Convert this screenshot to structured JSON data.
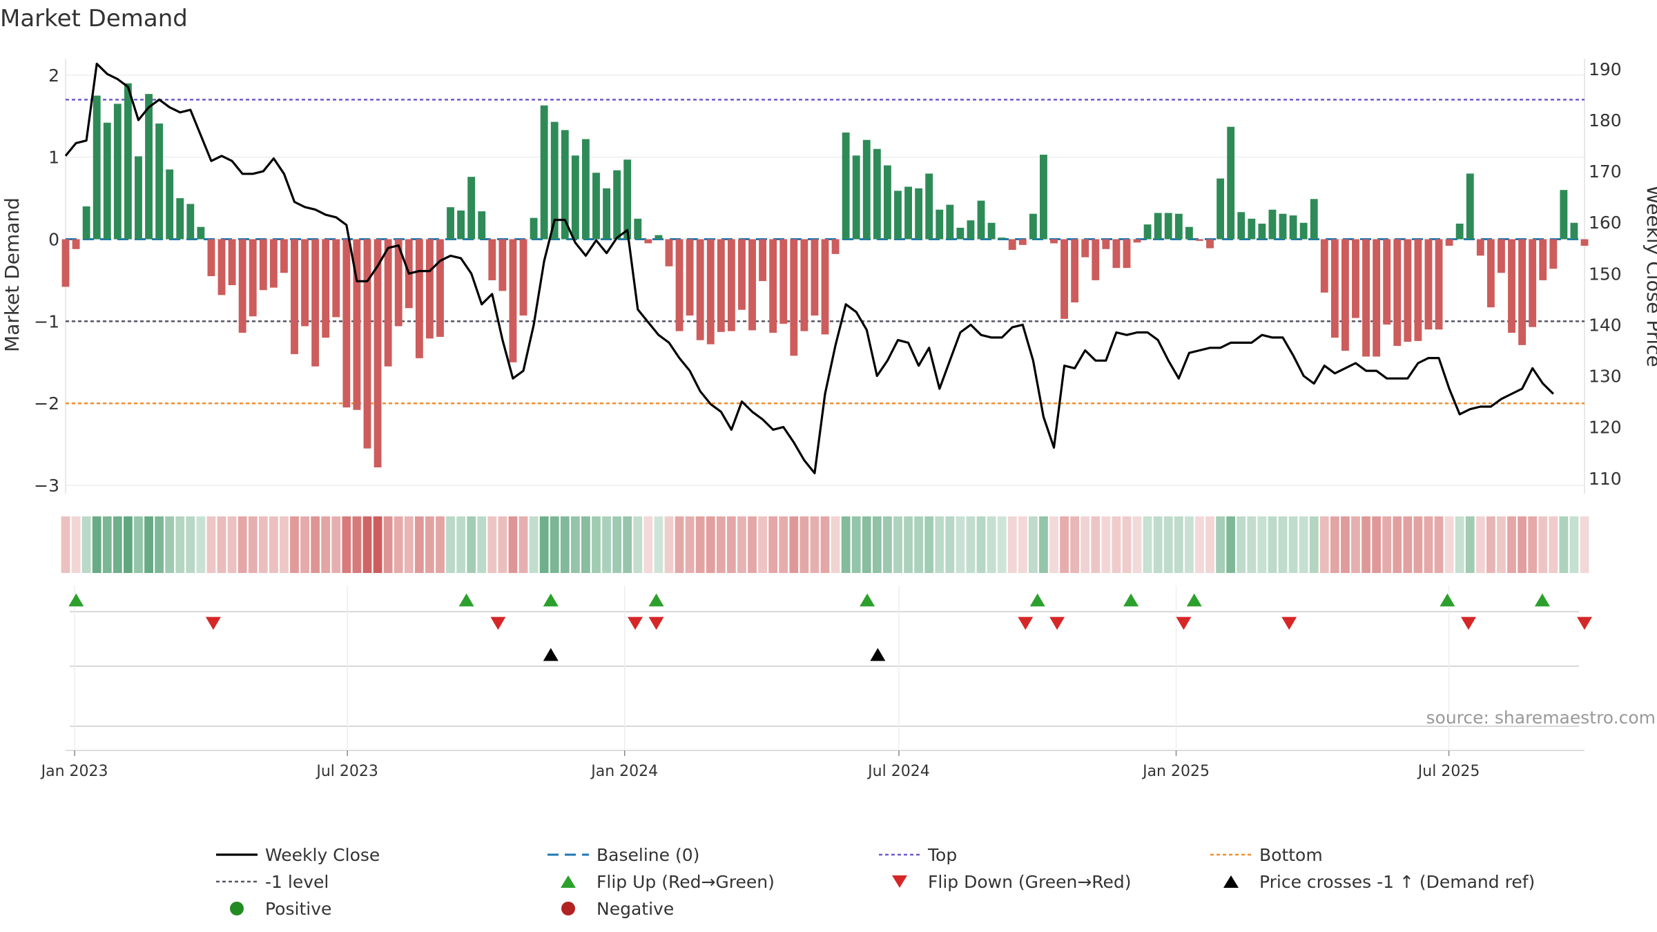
{
  "chart_data": {
    "type": "bar",
    "title": "Market Demand",
    "ylabel": "Market Demand",
    "y2label": "Weekly Close Price",
    "source": "source: sharemaestro.com",
    "ylim": [
      -3.1,
      2.2
    ],
    "y2lim": [
      107,
      192
    ],
    "yticks": [
      2,
      1,
      0,
      -1,
      -2,
      -3
    ],
    "ytick_labels": [
      "2",
      "1",
      "0",
      "−1",
      "−2",
      "−3"
    ],
    "y2ticks": [
      190,
      180,
      170,
      160,
      150,
      140,
      130,
      120,
      110
    ],
    "y2tick_labels": [
      "190",
      "180",
      "170",
      "160",
      "150",
      "140",
      "130",
      "120",
      "110"
    ],
    "x_start": "2022-12-26",
    "x_end": "2025-09-29",
    "weeks": 145,
    "xticks": [
      {
        "date": "2023-01-01",
        "label": "Jan 2023"
      },
      {
        "date": "2023-07-01",
        "label": "Jul 2023"
      },
      {
        "date": "2024-01-01",
        "label": "Jan 2024"
      },
      {
        "date": "2024-07-01",
        "label": "Jul 2024"
      },
      {
        "date": "2025-01-01",
        "label": "Jan 2025"
      },
      {
        "date": "2025-07-01",
        "label": "Jul 2025"
      }
    ],
    "reference_lines": {
      "baseline": 0,
      "top": 1.7,
      "minus_one": -1,
      "bottom": -2
    },
    "colors": {
      "positive": "#2e8b57",
      "negative": "#cd5c5c",
      "price": "#000000",
      "top": "#6a5acd",
      "bottom": "#f28e2b",
      "baseline": "#1f77b4",
      "minus_one": "#555566",
      "flip_up": "#2ca02c",
      "flip_down": "#d62728",
      "positive_dot": "#228b22",
      "negative_dot": "#b22222"
    },
    "demand": [
      -0.58,
      -0.12,
      0.4,
      1.75,
      1.42,
      1.65,
      1.9,
      1.01,
      1.77,
      1.41,
      0.85,
      0.5,
      0.43,
      0.15,
      -0.45,
      -0.68,
      -0.56,
      -1.14,
      -0.94,
      -0.62,
      -0.59,
      -0.41,
      -1.4,
      -1.06,
      -1.55,
      -1.2,
      -0.95,
      -2.05,
      -2.08,
      -2.55,
      -2.78,
      -1.55,
      -1.06,
      -0.84,
      -1.45,
      -1.21,
      -1.19,
      0.39,
      0.35,
      0.76,
      0.34,
      -0.5,
      -0.63,
      -1.5,
      -0.93,
      0.26,
      1.63,
      1.43,
      1.33,
      1.02,
      1.22,
      0.81,
      0.62,
      0.84,
      0.97,
      0.25,
      -0.05,
      0.05,
      -0.33,
      -1.12,
      -0.93,
      -1.23,
      -1.28,
      -1.13,
      -1.12,
      -0.86,
      -1.11,
      -0.51,
      -1.14,
      -1.03,
      -1.42,
      -1.12,
      -0.93,
      -1.16,
      -0.18,
      1.3,
      1.02,
      1.21,
      1.1,
      0.9,
      0.59,
      0.64,
      0.62,
      0.8,
      0.36,
      0.42,
      0.14,
      0.23,
      0.47,
      0.2,
      0.02,
      -0.13,
      -0.07,
      0.31,
      1.03,
      -0.05,
      -0.97,
      -0.77,
      -0.22,
      -0.5,
      -0.12,
      -0.35,
      -0.35,
      -0.04,
      0.18,
      0.32,
      0.32,
      0.31,
      0.15,
      -0.02,
      -0.11,
      0.74,
      1.37,
      0.33,
      0.25,
      0.19,
      0.36,
      0.31,
      0.29,
      0.2,
      0.49,
      -0.65,
      -1.2,
      -1.36,
      -0.96,
      -1.43,
      -1.43,
      -1.04,
      -1.3,
      -1.25,
      -1.24,
      -1.1,
      -1.1,
      -0.08,
      0.19,
      0.8,
      -0.2,
      -0.83,
      -0.41,
      -1.14,
      -1.29,
      -1.07,
      -0.5,
      -0.36,
      0.6,
      0.2,
      -0.08
    ],
    "price": [
      173,
      175.5,
      176,
      191,
      189,
      188,
      186.5,
      180,
      182.5,
      184,
      182.5,
      181.5,
      182,
      177,
      172,
      173,
      172,
      169.5,
      169.5,
      170,
      172.5,
      169.5,
      164,
      163,
      162.5,
      161.5,
      161,
      159.5,
      148.5,
      148.5,
      151.5,
      155,
      155.5,
      150,
      150.5,
      150.5,
      152.5,
      153.5,
      153,
      150,
      144,
      146,
      137,
      129.5,
      131,
      140,
      152.5,
      160.5,
      160.5,
      156,
      153.5,
      156.5,
      154,
      157,
      158.5,
      143,
      140.5,
      138,
      136.5,
      133.5,
      131,
      127,
      124.5,
      123,
      119.5,
      125,
      123,
      121.5,
      119.5,
      120,
      117,
      113.5,
      111,
      126.5,
      136,
      144,
      142.5,
      139,
      130,
      133,
      137,
      136.5,
      132,
      135.5,
      127.5,
      133,
      138.5,
      140,
      138,
      137.5,
      137.5,
      139.5,
      140,
      133,
      122,
      116,
      132,
      131.5,
      135,
      133,
      133,
      138.5,
      138,
      138.5,
      138.5,
      137,
      133,
      129.5,
      134.5,
      135,
      135.5,
      135.5,
      136.5,
      136.5,
      136.5,
      138,
      137.5,
      137.5,
      134,
      130,
      128.5,
      132,
      130.5,
      131.5,
      132.5,
      131,
      131,
      129.5,
      129.5,
      129.5,
      132.5,
      133.5,
      133.5,
      127.5,
      122.5,
      123.5,
      124,
      124,
      125.5,
      126.5,
      127.5,
      131.5,
      128.5,
      126.5
    ],
    "regime_strip": {
      "label": "regime-strip"
    },
    "flip_up_dates": [
      "2023-01-02",
      "2023-09-18",
      "2023-11-13",
      "2024-01-22",
      "2024-06-10",
      "2024-10-01",
      "2024-12-02",
      "2025-01-13",
      "2025-06-30",
      "2025-09-01"
    ],
    "flip_down_dates": [
      "2023-04-03",
      "2023-10-09",
      "2024-01-08",
      "2024-01-22",
      "2024-09-23",
      "2024-10-14",
      "2025-01-06",
      "2025-03-17",
      "2025-07-14",
      "2025-09-29"
    ],
    "price_cross_dates": [
      "2023-11-13",
      "2024-06-17"
    ],
    "legend": [
      {
        "label": "Weekly Close",
        "marker": "line",
        "color": "#000000"
      },
      {
        "label": "Baseline (0)",
        "marker": "dash",
        "color": "#1f77b4"
      },
      {
        "label": "Top",
        "marker": "dot-line",
        "color": "#6a5acd"
      },
      {
        "label": "Bottom",
        "marker": "dot-line",
        "color": "#f28e2b"
      },
      {
        "label": "-1 level",
        "marker": "dot-line",
        "color": "#555566"
      },
      {
        "label": "Flip Up (Red→Green)",
        "marker": "tri-up",
        "color": "#2ca02c"
      },
      {
        "label": "Flip Down (Green→Red)",
        "marker": "tri-down",
        "color": "#d62728"
      },
      {
        "label": "Price crosses -1 ↑ (Demand ref)",
        "marker": "tri-up",
        "color": "#000000"
      },
      {
        "label": "Positive",
        "marker": "circle",
        "color": "#228b22"
      },
      {
        "label": "Negative",
        "marker": "circle",
        "color": "#b22222"
      }
    ]
  }
}
